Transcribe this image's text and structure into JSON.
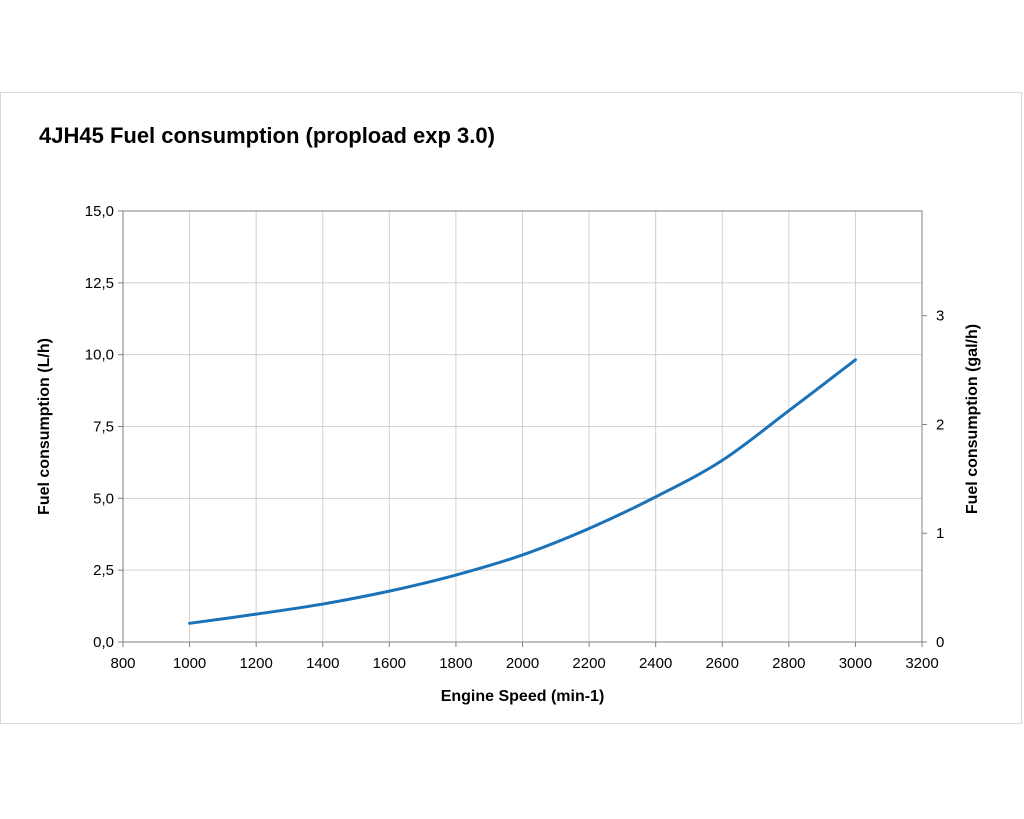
{
  "chart_data": {
    "type": "line",
    "title": "4JH45 Fuel consumption  (propload exp 3.0)",
    "xlabel": "Engine Speed (min-1)",
    "ylabel": "Fuel consumption (L/h)",
    "y2label": "Fuel consumption (gal/h)",
    "xlim": [
      800,
      3200
    ],
    "ylim": [
      0,
      15
    ],
    "y2lim": [
      0,
      3.9626
    ],
    "x_ticks": [
      "800",
      "1000",
      "1200",
      "1400",
      "1600",
      "1800",
      "2000",
      "2200",
      "2400",
      "2600",
      "2800",
      "3000",
      "3200"
    ],
    "x_tick_values": [
      800,
      1000,
      1200,
      1400,
      1600,
      1800,
      2000,
      2200,
      2400,
      2600,
      2800,
      3000,
      3200
    ],
    "y_ticks": [
      "0,0",
      "2,5",
      "5,0",
      "7,5",
      "10,0",
      "12,5",
      "15,0"
    ],
    "y_tick_values": [
      0,
      2.5,
      5,
      7.5,
      10,
      12.5,
      15
    ],
    "y2_ticks": [
      "0",
      "1",
      "2",
      "3"
    ],
    "y2_tick_values": [
      0,
      1,
      2,
      3
    ],
    "grid": true,
    "series": [
      {
        "name": "Fuel consumption",
        "color": "#1a72b9",
        "x": [
          1000,
          1200,
          1400,
          1600,
          1800,
          2000,
          2200,
          2400,
          2600,
          2800,
          3000
        ],
        "y": [
          0.65,
          0.97,
          1.32,
          1.77,
          2.33,
          3.03,
          3.95,
          5.05,
          6.32,
          8.05,
          9.82
        ]
      }
    ]
  }
}
